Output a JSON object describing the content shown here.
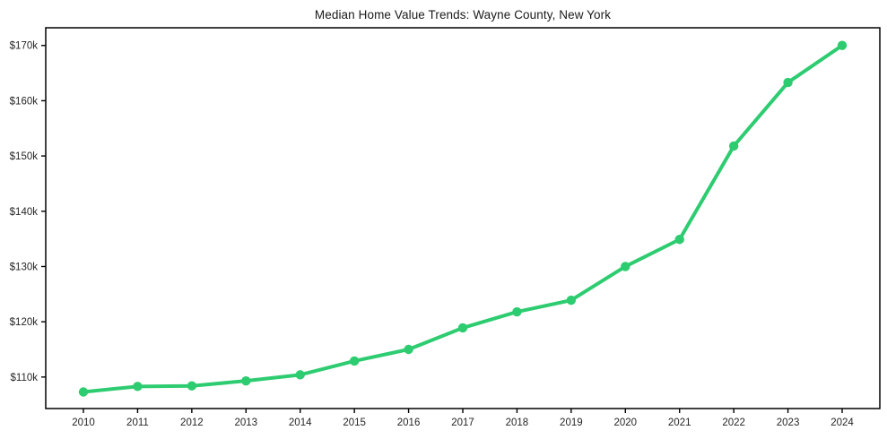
{
  "chart_data": {
    "type": "line",
    "title": "Median Home Value Trends: Wayne County, New York",
    "categories": [
      "2010",
      "2011",
      "2012",
      "2013",
      "2014",
      "2015",
      "2016",
      "2017",
      "2018",
      "2019",
      "2020",
      "2021",
      "2022",
      "2023",
      "2024"
    ],
    "series": [
      {
        "name": "Median home value",
        "values_k_usd": [
          107.3,
          108.3,
          108.4,
          109.3,
          110.4,
          112.9,
          115.0,
          118.9,
          121.8,
          123.9,
          130.0,
          134.9,
          151.8,
          163.3,
          170.0
        ]
      }
    ],
    "xlabel": "",
    "ylabel": "",
    "ylim_k_usd": [
      104.3,
      173.2
    ],
    "ytick_values_k": [
      110,
      120,
      130,
      140,
      150,
      160,
      170
    ],
    "ytick_labels": [
      "$110k",
      "$120k",
      "$130k",
      "$140k",
      "$150k",
      "$160k",
      "$170k"
    ],
    "grid": "off",
    "legend": "none",
    "marker": "circle",
    "colors": {
      "line": "#2ecc71",
      "marker": "#2ecc71",
      "axis": "#000000",
      "tick_label": "#262626",
      "title": "#1a1a1a",
      "background": "#ffffff"
    }
  }
}
